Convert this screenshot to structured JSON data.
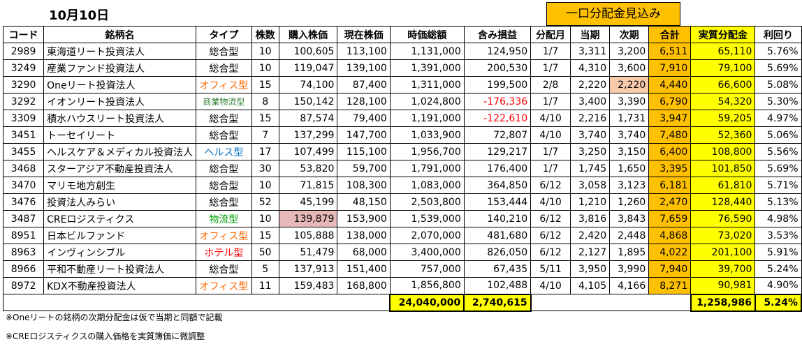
{
  "title": "10月10日",
  "dist_header": "一口分配金見込み",
  "columns": [
    "コード",
    "銘柄名",
    "タイプ",
    "株数",
    "購入株価",
    "現在株価",
    "時価総額",
    "含み損益",
    "分配月",
    "当期",
    "次期",
    "合計",
    "実質分配金",
    "利回り"
  ],
  "rows": [
    {
      "code": "2989",
      "name": "東海道リート投資法人",
      "type": "総合型",
      "shares": "10",
      "buy": "100,605",
      "price": "113,100",
      "mcap": "1,131,000",
      "pl": "124,950",
      "month": "1/7",
      "cur": "3,311",
      "next": "3,200",
      "total": "6,511",
      "real": "65,110",
      "yield": "5.76%"
    },
    {
      "code": "3249",
      "name": "産業ファンド投資法人",
      "type": "総合型",
      "shares": "10",
      "buy": "119,047",
      "price": "139,100",
      "mcap": "1,391,000",
      "pl": "200,530",
      "month": "1/7",
      "cur": "4,310",
      "next": "3,600",
      "total": "7,910",
      "real": "79,100",
      "yield": "5.69%"
    },
    {
      "code": "3290",
      "name": "Oneリート投資法人",
      "type": "オフィス型",
      "shares": "15",
      "buy": "74,100",
      "price": "87,400",
      "mcap": "1,311,000",
      "pl": "199,500",
      "month": "2/8",
      "cur": "2,220",
      "next": "2,220",
      "total": "4,440",
      "real": "66,600",
      "yield": "5.08%"
    },
    {
      "code": "3292",
      "name": "イオンリート投資法人",
      "type": "商業物流型",
      "shares": "8",
      "buy": "150,142",
      "price": "128,100",
      "mcap": "1,024,800",
      "pl": "-176,336",
      "month": "1/7",
      "cur": "3,400",
      "next": "3,390",
      "total": "6,790",
      "real": "54,320",
      "yield": "5.30%"
    },
    {
      "code": "3309",
      "name": "積水ハウスリート投資法人",
      "type": "総合型",
      "shares": "15",
      "buy": "87,574",
      "price": "79,400",
      "mcap": "1,191,000",
      "pl": "-122,610",
      "month": "4/10",
      "cur": "2,216",
      "next": "1,731",
      "total": "3,947",
      "real": "59,205",
      "yield": "4.97%"
    },
    {
      "code": "3451",
      "name": "トーセイリート",
      "type": "総合型",
      "shares": "7",
      "buy": "137,299",
      "price": "147,700",
      "mcap": "1,033,900",
      "pl": "72,807",
      "month": "4/10",
      "cur": "3,740",
      "next": "3,740",
      "total": "7,480",
      "real": "52,360",
      "yield": "5.06%"
    },
    {
      "code": "3455",
      "name": "ヘルスケア＆メディカル投資法人",
      "type": "ヘルス型",
      "shares": "17",
      "buy": "107,499",
      "price": "115,100",
      "mcap": "1,956,700",
      "pl": "129,217",
      "month": "1/7",
      "cur": "3,250",
      "next": "3,150",
      "total": "6,400",
      "real": "108,800",
      "yield": "5.56%"
    },
    {
      "code": "3468",
      "name": "スターアジア不動産投資法人",
      "type": "総合型",
      "shares": "30",
      "buy": "53,820",
      "price": "59,700",
      "mcap": "1,791,000",
      "pl": "176,400",
      "month": "1/7",
      "cur": "1,745",
      "next": "1,650",
      "total": "3,395",
      "real": "101,850",
      "yield": "5.69%"
    },
    {
      "code": "3470",
      "name": "マリモ地方創生",
      "type": "総合型",
      "shares": "10",
      "buy": "71,815",
      "price": "108,300",
      "mcap": "1,083,000",
      "pl": "364,850",
      "month": "6/12",
      "cur": "3,058",
      "next": "3,123",
      "total": "6,181",
      "real": "61,810",
      "yield": "5.71%"
    },
    {
      "code": "3476",
      "name": "投資法人みらい",
      "type": "総合型",
      "shares": "52",
      "buy": "45,199",
      "price": "48,150",
      "mcap": "2,503,800",
      "pl": "153,444",
      "month": "4/10",
      "cur": "1,210",
      "next": "1,260",
      "total": "2,470",
      "real": "128,440",
      "yield": "5.13%"
    },
    {
      "code": "3487",
      "name": "CREロジスティクス",
      "type": "物流型",
      "shares": "10",
      "buy": "139,879",
      "price": "153,900",
      "mcap": "1,539,000",
      "pl": "140,210",
      "month": "6/12",
      "cur": "3,816",
      "next": "3,843",
      "total": "7,659",
      "real": "76,590",
      "yield": "4.98%"
    },
    {
      "code": "8951",
      "name": "日本ビルファンド",
      "type": "オフィス型",
      "shares": "15",
      "buy": "105,888",
      "price": "138,000",
      "mcap": "2,070,000",
      "pl": "481,680",
      "month": "6/12",
      "cur": "2,420",
      "next": "2,448",
      "total": "4,868",
      "real": "73,020",
      "yield": "3.53%"
    },
    {
      "code": "8963",
      "name": "インヴィンシブル",
      "type": "ホテル型",
      "shares": "50",
      "buy": "51,479",
      "price": "68,000",
      "mcap": "3,400,000",
      "pl": "826,050",
      "month": "6/12",
      "cur": "2,127",
      "next": "1,895",
      "total": "4,022",
      "real": "201,100",
      "yield": "5.91%"
    },
    {
      "code": "8966",
      "name": "平和不動産リート投資法人",
      "type": "総合型",
      "shares": "5",
      "buy": "137,913",
      "price": "151,400",
      "mcap": "757,000",
      "pl": "67,435",
      "month": "5/11",
      "cur": "3,950",
      "next": "3,990",
      "total": "7,940",
      "real": "39,700",
      "yield": "5.24%"
    },
    {
      "code": "8972",
      "name": "KDX不動産投資法人",
      "type": "オフィス型",
      "shares": "11",
      "buy": "159,483",
      "price": "168,800",
      "mcap": "1,856,800",
      "pl": "102,488",
      "month": "4/10",
      "cur": "4,105",
      "next": "4,166",
      "total": "8,271",
      "real": "90,981",
      "yield": "4.90%"
    }
  ],
  "totals": {
    "mcap": "24,040,000",
    "pl": "2,740,615",
    "real": "1,258,986",
    "yield": "5.24%"
  },
  "notes": [
    "※Oneリートの銘柄の次期分配金は仮で当期と同額で記載",
    "※CREロジスティクスの購入価格を実質簿価に微調整"
  ],
  "colors": {
    "orange": "#ffc000",
    "yellow": "#ffff00",
    "negative": "#ff0000",
    "office": "#ff6600",
    "health": "#0070c0"
  }
}
